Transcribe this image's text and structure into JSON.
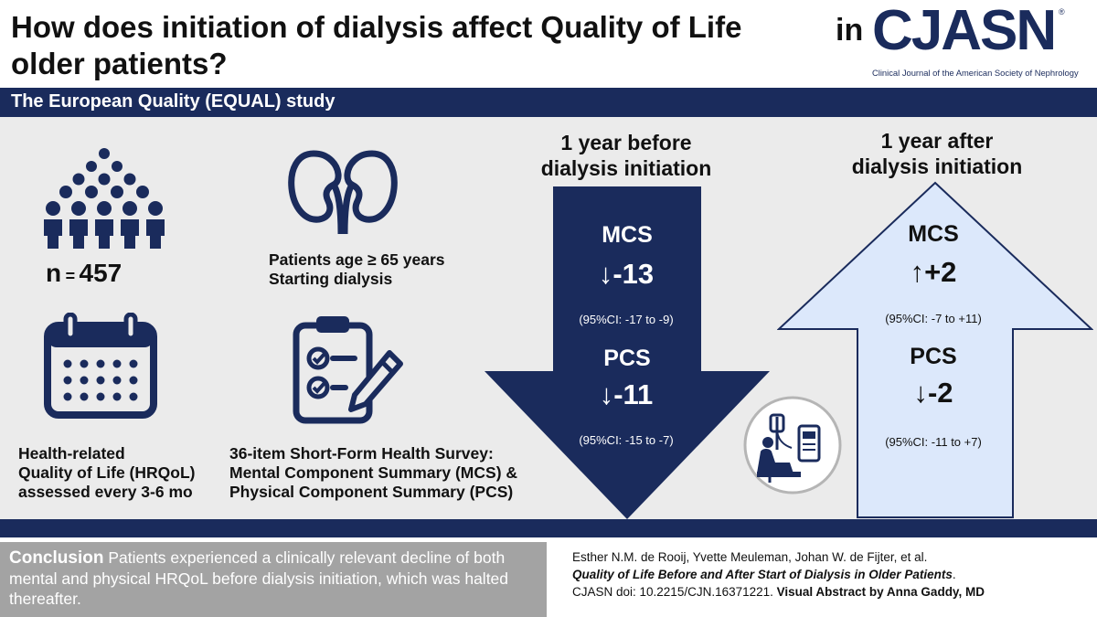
{
  "title": {
    "line1": "How does initiation of dialysis affect Quality of Life",
    "line2": "older patients?"
  },
  "brand": {
    "prefix": "in",
    "logo": "CJASN",
    "reg": "®",
    "subtitle": "Clinical Journal of the American Society of Nephrology"
  },
  "study": {
    "label": "The European Quality (EQUAL) study"
  },
  "population": {
    "n_label": "n",
    "n_eq": "=",
    "n_value": "457",
    "icon": "people-crowd-icon"
  },
  "patients": {
    "line1": "Patients age ≥ 65 years",
    "line2": "Starting dialysis",
    "icon": "kidneys-icon"
  },
  "assessment": {
    "line1": "Health-related",
    "line2": "Quality of Life (HRQoL)",
    "line3": "assessed every 3-6 mo",
    "icon": "calendar-icon"
  },
  "survey": {
    "line1": "36-item Short-Form Health Survey:",
    "line2": "Mental Component Summary (MCS) &",
    "line3": "Physical Component Summary (PCS)",
    "icon": "clipboard-checklist-icon"
  },
  "before": {
    "heading1": "1 year before",
    "heading2": "dialysis initiation",
    "mcs_label": "MCS",
    "mcs_value": "↓-13",
    "mcs_ci": "(95%CI:  -17 to -9)",
    "pcs_label": "PCS",
    "pcs_value": "↓-11",
    "pcs_ci": "(95%CI:  -15 to -7)"
  },
  "after": {
    "heading1": "1 year after",
    "heading2": "dialysis initiation",
    "mcs_label": "MCS",
    "mcs_value": "↑+2",
    "mcs_ci": "(95%CI:  -7 to +11)",
    "pcs_label": "PCS",
    "pcs_value": "↓-2",
    "pcs_ci": "(95%CI:  -11 to +7)"
  },
  "conclusion": {
    "title": "Conclusion",
    "text": " Patients experienced a clinically relevant decline of both mental and physical HRQoL before dialysis initiation, which was halted thereafter."
  },
  "citation": {
    "authors": "Esther N.M. de Rooij, Yvette Meuleman, Johan W. de Fijter, et al.",
    "article": "Quality of Life Before and After Start of Dialysis in Older Patients",
    "period": ".",
    "doi": "CJASN doi: 10.2215/CJN.16371221. ",
    "credit": "Visual Abstract by Anna Gaddy, MD"
  },
  "colors": {
    "navy": "#1a2b5c",
    "light_blue": "#dce8fb",
    "panel_gray": "#ebebeb",
    "conclusion_gray": "#a3a3a3"
  }
}
